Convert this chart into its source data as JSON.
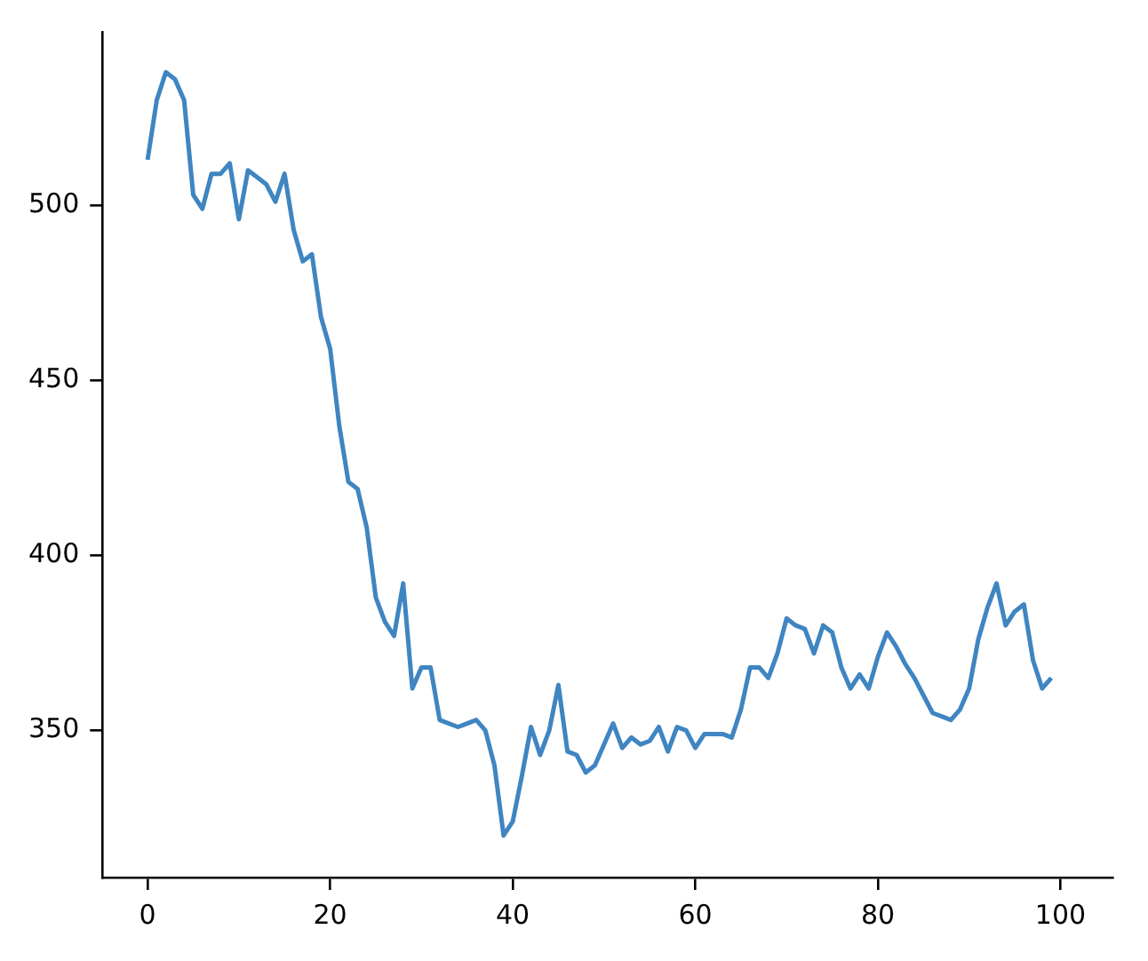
{
  "chart_data": {
    "type": "line",
    "x": [
      0,
      1,
      2,
      3,
      4,
      5,
      6,
      7,
      8,
      9,
      10,
      11,
      12,
      13,
      14,
      15,
      16,
      17,
      18,
      19,
      20,
      21,
      22,
      23,
      24,
      25,
      26,
      27,
      28,
      29,
      30,
      31,
      32,
      33,
      34,
      35,
      36,
      37,
      38,
      39,
      40,
      41,
      42,
      43,
      44,
      45,
      46,
      47,
      48,
      49,
      50,
      51,
      52,
      53,
      54,
      55,
      56,
      57,
      58,
      59,
      60,
      61,
      62,
      63,
      64,
      65,
      66,
      67,
      68,
      69,
      70,
      71,
      72,
      73,
      74,
      75,
      76,
      77,
      78,
      79,
      80,
      81,
      82,
      83,
      84,
      85,
      86,
      87,
      88,
      89,
      90,
      91,
      92,
      93,
      94,
      95,
      96,
      97,
      98,
      99
    ],
    "series": [
      {
        "color": "#3f85c1",
        "values": [
          513,
          530,
          538,
          536,
          530,
          503,
          499,
          509,
          509,
          512,
          496,
          510,
          508,
          506,
          501,
          509,
          493,
          484,
          486,
          468,
          459,
          437,
          421,
          419,
          408,
          388,
          381,
          377,
          392,
          362,
          368,
          368,
          353,
          352,
          351,
          352,
          353,
          350,
          340,
          320,
          324,
          337,
          351,
          343,
          350,
          363,
          344,
          343,
          338,
          340,
          346,
          352,
          345,
          348,
          346,
          347,
          351,
          344,
          351,
          350,
          345,
          349,
          349,
          349,
          348,
          356,
          368,
          368,
          365,
          372,
          382,
          380,
          379,
          372,
          380,
          378,
          368,
          362,
          366,
          362,
          371,
          378,
          374,
          369,
          365,
          360,
          355,
          354,
          353,
          356,
          362,
          376,
          385,
          392,
          380,
          384,
          386,
          370,
          362,
          365
        ]
      }
    ],
    "xlim": [
      -4.95,
      105.7
    ],
    "ylim": [
      308,
      549.5
    ],
    "xticks": [
      0,
      20,
      40,
      60,
      80,
      100
    ],
    "yticks": [
      350,
      400,
      450,
      500
    ],
    "grid": false,
    "legend": false,
    "marker": "none",
    "line_style": "solid"
  }
}
